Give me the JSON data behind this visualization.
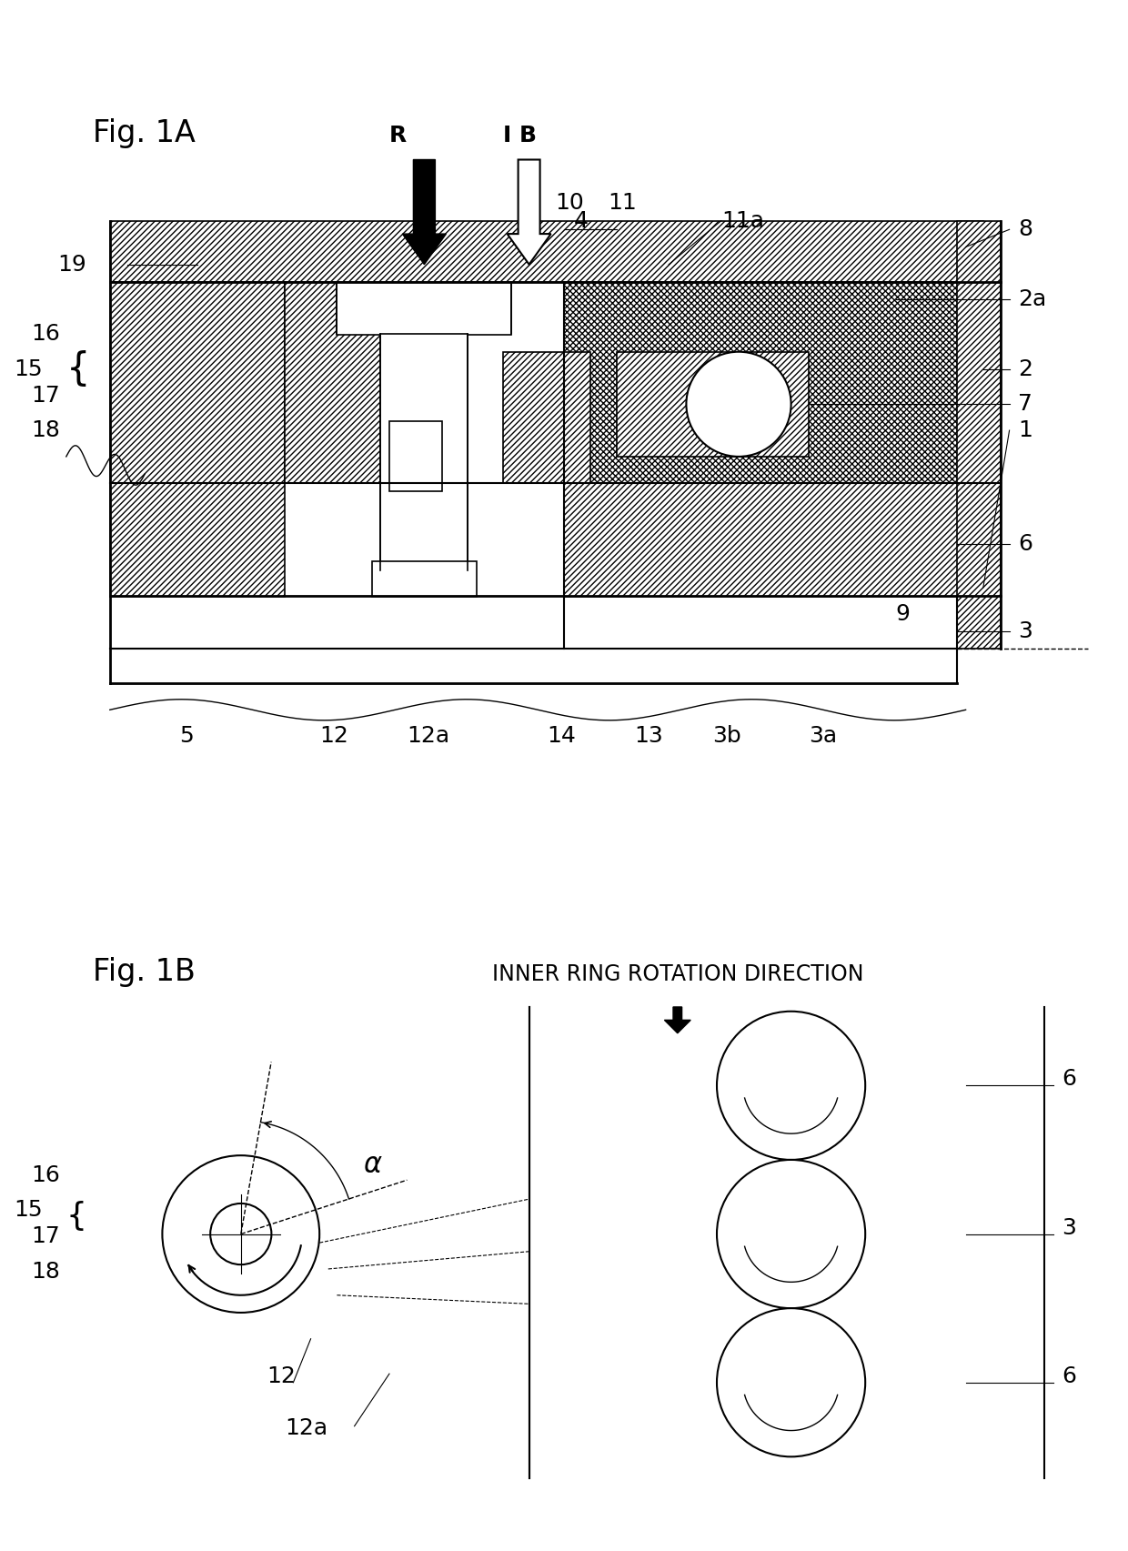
{
  "fig1a_label": "Fig. 1A",
  "fig1b_label": "Fig. 1B",
  "title_text": "INNER RING ROTATION DIRECTION",
  "background_color": "#ffffff",
  "line_color": "#000000",
  "label_fontsize": 20,
  "annotation_fontsize": 18,
  "fig_width": 12.4,
  "fig_height": 17.05
}
